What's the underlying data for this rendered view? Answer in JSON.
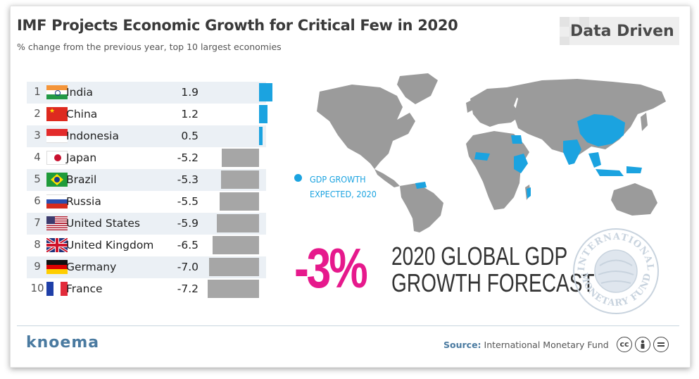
{
  "header": {
    "title": "IMF Projects Economic Growth for Critical Few in 2020",
    "subtitle": "% change from the previous year, top 10 largest economies",
    "brand": "Data Driven"
  },
  "chart_data": {
    "type": "bar",
    "orientation": "horizontal",
    "categories": [
      "India",
      "China",
      "Indonesia",
      "Japan",
      "Brazil",
      "Russia",
      "United States",
      "United Kingdom",
      "Germany",
      "France"
    ],
    "ranks": [
      "1",
      "2",
      "3",
      "4",
      "5",
      "6",
      "7",
      "8",
      "9",
      "10"
    ],
    "values": [
      1.9,
      1.2,
      0.5,
      -5.2,
      -5.3,
      -5.5,
      -5.9,
      -6.5,
      -7.0,
      -7.2
    ],
    "value_labels": [
      "1.9",
      "1.2",
      "0.5",
      "-5.2",
      "-5.3",
      "-5.5",
      "-5.9",
      "-6.5",
      "-7.0",
      "-7.2"
    ],
    "positive_color": "#1ba3e0",
    "negative_color": "#a6a6a6"
  },
  "map": {
    "legend": [
      "GDP GROWTH",
      "EXPECTED, 2020"
    ],
    "highlight_color": "#1ba3e0",
    "base_color": "#9b9b9b"
  },
  "forecast": {
    "value": "-3%",
    "line1": "2020 GLOBAL GDP",
    "line2": "GROWTH FORECAST"
  },
  "seal": {
    "top_text": "INTERNATIONAL",
    "bottom_text": "MONETARY FUND"
  },
  "footer": {
    "logo": "knoema",
    "source_label": "Source:",
    "source_text": "International Monetary Fund",
    "license_icons": [
      "cc",
      "by",
      "nd"
    ]
  }
}
